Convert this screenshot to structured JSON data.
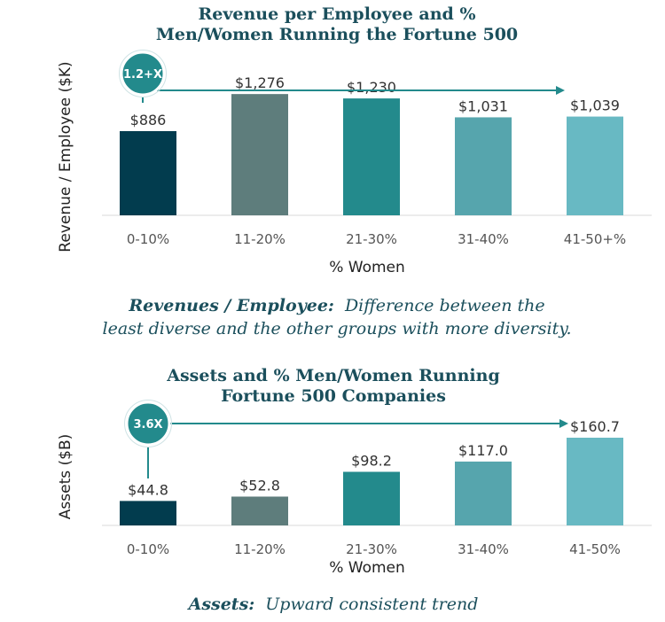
{
  "colors": [
    "#023c4e",
    "#5e7d7c",
    "#238a8c",
    "#56a5ad",
    "#68b9c3"
  ],
  "accent": "#238a8c",
  "chart_data": [
    {
      "type": "bar",
      "title_lines": [
        "Revenue per Employee and %",
        "Men/Women Running the Fortune 500"
      ],
      "xlabel": "% Women",
      "ylabel": "Revenue / Employee ($K)",
      "categories": [
        "0-10%",
        "11-20%",
        "21-30%",
        "31-40%",
        "41-50+%"
      ],
      "values": [
        886,
        1276,
        1230,
        1031,
        1039
      ],
      "value_labels": [
        "$886",
        "$1,276",
        "$1,230",
        "$1,031",
        "$1,039"
      ],
      "ylim": [
        0,
        1380
      ],
      "grid": false,
      "annotation": "1.2+X",
      "caption_bold": "Revenues / Employee:",
      "caption_rest": "Difference between the",
      "caption_line2": "least diverse and the other groups with more diversity."
    },
    {
      "type": "bar",
      "title_lines": [
        "Assets and % Men/Women Running",
        "Fortune 500 Companies"
      ],
      "xlabel": "% Women",
      "ylabel": "Assets ($B)",
      "categories": [
        "0-10%",
        "11-20%",
        "21-30%",
        "31-40%",
        "41-50%"
      ],
      "values": [
        44.8,
        52.8,
        98.2,
        117.0,
        160.7
      ],
      "value_labels": [
        "$44.8",
        "$52.8",
        "$98.2",
        "$117.0",
        "$160.7"
      ],
      "ylim": [
        0,
        160.7
      ],
      "grid": false,
      "annotation": "3.6X",
      "caption_bold": "Assets:",
      "caption_rest": "Upward consistent trend",
      "caption_line2": ""
    }
  ]
}
